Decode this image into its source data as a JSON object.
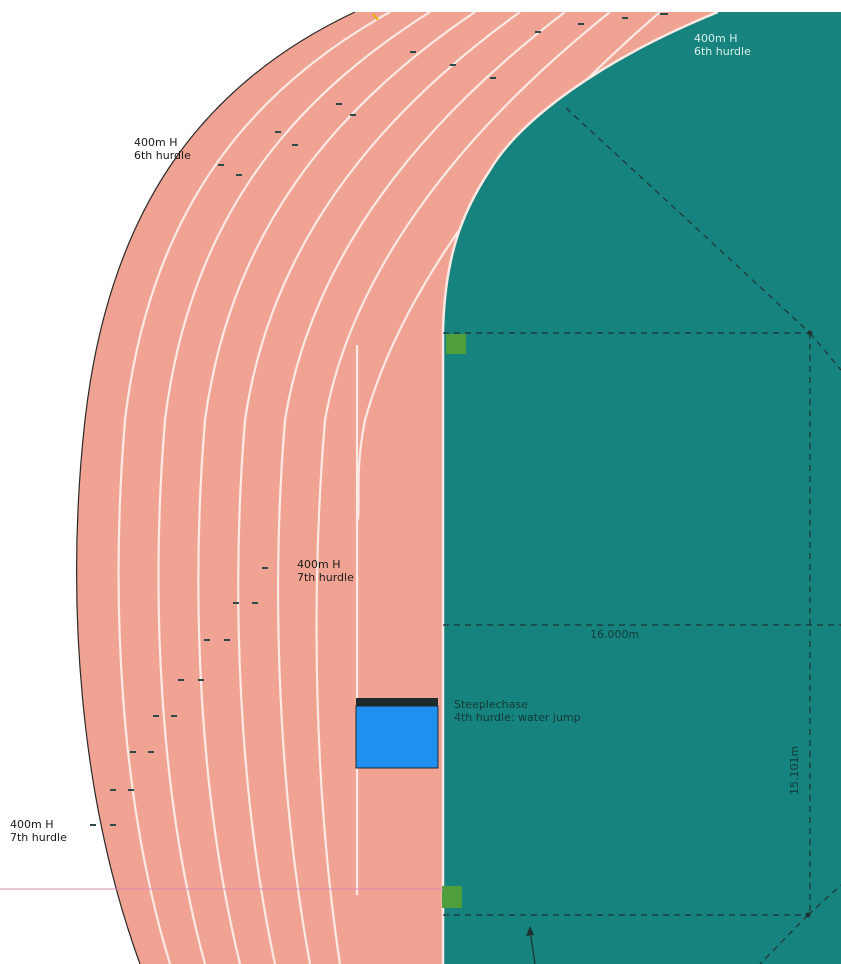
{
  "labels": {
    "hurdle_400_6_top": {
      "line1": "400m H",
      "line2": "6th hurdle"
    },
    "hurdle_400_6_left": {
      "line1": "400m H",
      "line2": "6th hurdle"
    },
    "hurdle_400_7_mid": {
      "line1": "400m H",
      "line2": "7th hurdle"
    },
    "hurdle_400_7_low": {
      "line1": "400m H",
      "line2": "7th hurdle"
    },
    "steeplechase": {
      "line1": "Steeplechase",
      "line2": "4th hurdle: water jump"
    },
    "width_dim": "16.000m",
    "height_dim": "15.101m"
  },
  "colors": {
    "track": "#f0a393",
    "infield": "#16837f",
    "lane_line": "#fbe9e3",
    "water_jump": "#1f8ff0",
    "marker": "#4e9e3b",
    "dash": "#1e3330"
  }
}
